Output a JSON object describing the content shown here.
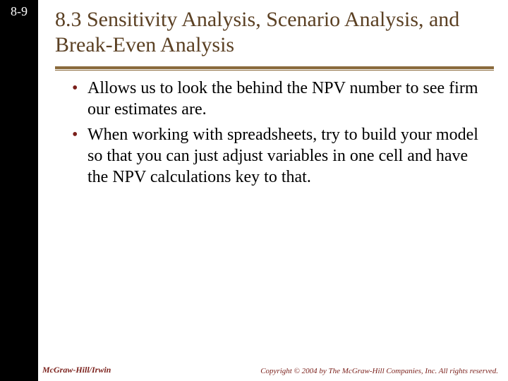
{
  "slide": {
    "number": "8-9",
    "title": "8.3 Sensitivity Analysis, Scenario Analysis, and  Break-Even Analysis",
    "bullets": [
      "Allows us to look the behind the NPV number to see firm our estimates are.",
      "When working with spreadsheets, try to build your model so that you can just adjust variables in one cell and have the NPV calculations key to that."
    ]
  },
  "footer": {
    "left": "McGraw-Hill/Irwin",
    "right": "Copyright © 2004 by The McGraw-Hill Companies, Inc.  All rights reserved."
  },
  "style": {
    "sidebar_color": "#000000",
    "title_color": "#5b4023",
    "rule_color": "#8a6a3c",
    "bullet_color": "#7a1f1a",
    "text_color": "#000000",
    "footer_color": "#7a1f1a",
    "title_fontsize": 30,
    "body_fontsize": 24,
    "font_family": "Times New Roman"
  }
}
